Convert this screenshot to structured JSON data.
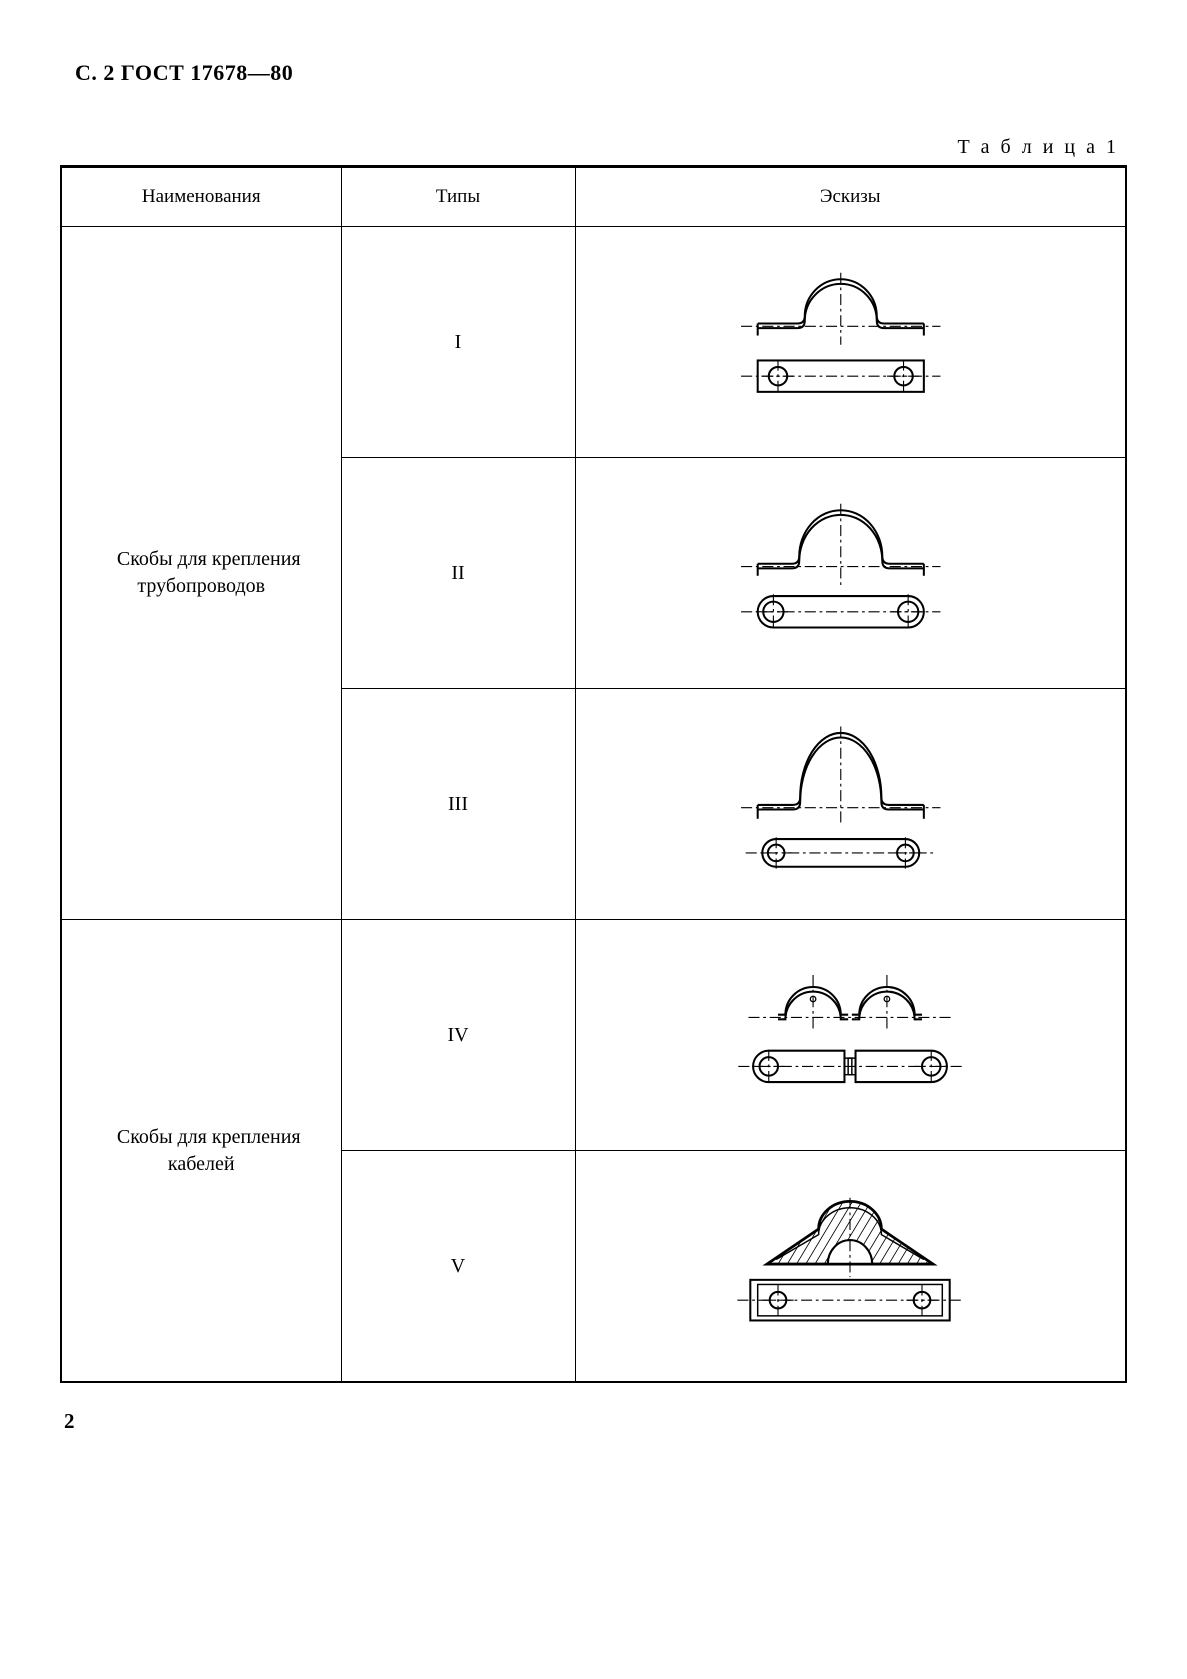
{
  "header": "С. 2 ГОСТ 17678—80",
  "table_caption": "Т а б л и ц а   1",
  "columns": {
    "name": "Наименования",
    "type": "Типы",
    "sketch": "Эскизы"
  },
  "groups": [
    {
      "name": "Скобы для крепления трубопроводов",
      "rowspan": 3,
      "rows": [
        {
          "type": "I",
          "sketch_kind": "arch_high_rect"
        },
        {
          "type": "II",
          "sketch_kind": "arch_mid_oval"
        },
        {
          "type": "III",
          "sketch_kind": "arch_deep_oval"
        }
      ]
    },
    {
      "name": "Скобы для крепления кабелей",
      "rowspan": 2,
      "rows": [
        {
          "type": "IV",
          "sketch_kind": "double_split"
        },
        {
          "type": "V",
          "sketch_kind": "wedge_rect"
        }
      ]
    }
  ],
  "page_number": "2",
  "style": {
    "stroke": "#000000",
    "line_w": 2.2,
    "line_w_heavy": 3,
    "dash": "6 4 2 4"
  }
}
